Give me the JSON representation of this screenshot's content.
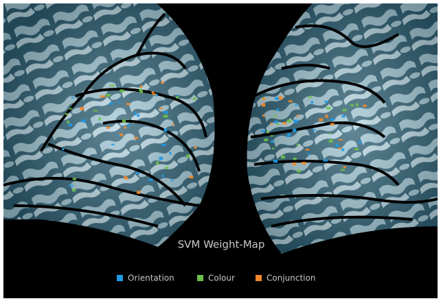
{
  "figure": {
    "title": "SVM Weight-Map",
    "legend": [
      {
        "label": "Orientation",
        "color": "#1e9be6"
      },
      {
        "label": "Colour",
        "color": "#6cc04a"
      },
      {
        "label": "Conjunction",
        "color": "#f28a2a"
      }
    ]
  }
}
